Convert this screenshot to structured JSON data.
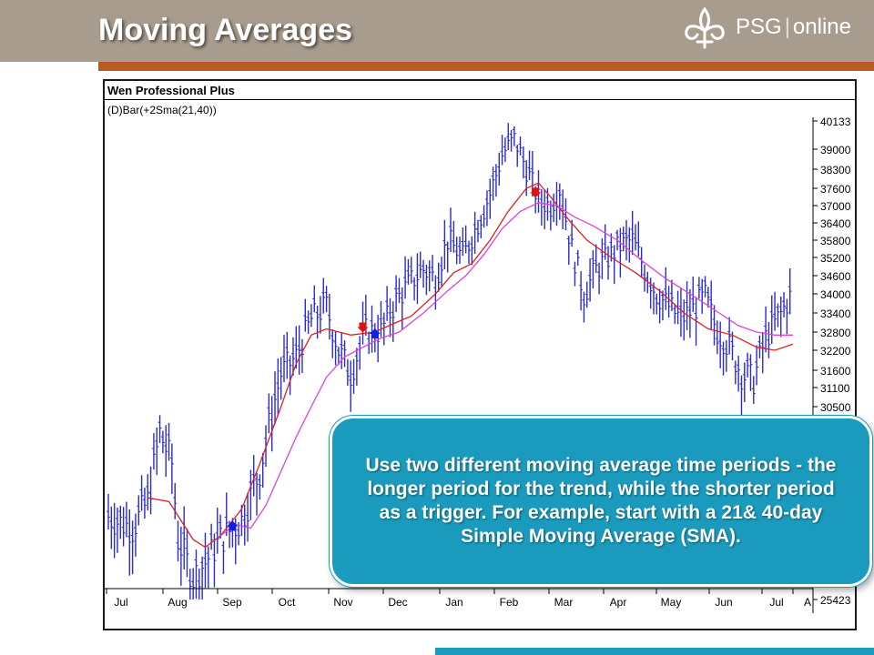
{
  "slide": {
    "title": "Moving Averages",
    "logo_name": "PSG",
    "logo_sub": "online",
    "callout": "Use two different moving average time periods - the longer period for the trend, while the shorter period as a trigger. For example, start with a 21& 40-day Simple Moving Average (SMA)."
  },
  "colors": {
    "header": "#a89c8e",
    "accent": "#b85a24",
    "callout": "#1a9bbd",
    "bars": "#2b2bd0",
    "sma_short": "#e02020",
    "sma_long": "#e040e0",
    "sell_marker": "#e01010",
    "buy_marker": "#1020e0"
  },
  "chart_data": {
    "type": "line",
    "title": "Wen Professional Plus",
    "study": "(D)Bar(+2Sma(21,40))",
    "x_labels": [
      "Jul",
      "Aug",
      "Sep",
      "Oct",
      "Nov",
      "Dec",
      "Jan",
      "Feb",
      "Mar",
      "Apr",
      "May",
      "Jun",
      "Jul",
      "A"
    ],
    "y_ticks": [
      40133,
      39000,
      38300,
      37600,
      37000,
      36400,
      35800,
      35200,
      34600,
      34000,
      33400,
      32800,
      32200,
      31600,
      31100,
      30500,
      25423
    ],
    "ylim": [
      25423,
      40133
    ],
    "price_anchors": [
      [
        0,
        27600
      ],
      [
        8,
        27300
      ],
      [
        13,
        28000
      ],
      [
        17,
        29800
      ],
      [
        21,
        29000
      ],
      [
        23,
        27000
      ],
      [
        28,
        26000
      ],
      [
        32,
        26400
      ],
      [
        37,
        27000
      ],
      [
        44,
        27500
      ],
      [
        50,
        28800
      ],
      [
        57,
        31500
      ],
      [
        62,
        32000
      ],
      [
        67,
        33200
      ],
      [
        72,
        33600
      ],
      [
        76,
        32200
      ],
      [
        80,
        31500
      ],
      [
        85,
        32800
      ],
      [
        90,
        32800
      ],
      [
        95,
        33800
      ],
      [
        100,
        34400
      ],
      [
        104,
        34800
      ],
      [
        108,
        34500
      ],
      [
        112,
        35800
      ],
      [
        117,
        35200
      ],
      [
        122,
        36400
      ],
      [
        126,
        37400
      ],
      [
        130,
        38800
      ],
      [
        134,
        39400
      ],
      [
        138,
        38300
      ],
      [
        142,
        37200
      ],
      [
        146,
        37000
      ],
      [
        149,
        37600
      ],
      [
        153,
        35500
      ],
      [
        157,
        34000
      ],
      [
        161,
        34800
      ],
      [
        165,
        35200
      ],
      [
        169,
        35600
      ],
      [
        173,
        35800
      ],
      [
        177,
        34800
      ],
      [
        181,
        34000
      ],
      [
        185,
        33600
      ],
      [
        189,
        33200
      ],
      [
        193,
        33500
      ],
      [
        197,
        33900
      ],
      [
        201,
        32800
      ],
      [
        205,
        32300
      ],
      [
        209,
        31500
      ],
      [
        213,
        31300
      ],
      [
        217,
        32600
      ],
      [
        221,
        33200
      ],
      [
        225,
        33900
      ]
    ],
    "series": [
      {
        "name": "Sma(21)",
        "values": [
          [
            13,
            28100
          ],
          [
            20,
            28000
          ],
          [
            28,
            27000
          ],
          [
            32,
            26800
          ],
          [
            37,
            27100
          ],
          [
            44,
            27800
          ],
          [
            50,
            29000
          ],
          [
            57,
            30500
          ],
          [
            62,
            31800
          ],
          [
            67,
            32700
          ],
          [
            72,
            32900
          ],
          [
            80,
            32700
          ],
          [
            88,
            32800
          ],
          [
            95,
            33100
          ],
          [
            100,
            33300
          ],
          [
            108,
            34000
          ],
          [
            114,
            34700
          ],
          [
            120,
            35000
          ],
          [
            126,
            35800
          ],
          [
            132,
            36800
          ],
          [
            138,
            37600
          ],
          [
            142,
            37800
          ],
          [
            146,
            37300
          ],
          [
            152,
            36500
          ],
          [
            158,
            35800
          ],
          [
            166,
            35200
          ],
          [
            174,
            34700
          ],
          [
            182,
            34100
          ],
          [
            190,
            33400
          ],
          [
            198,
            32900
          ],
          [
            206,
            32700
          ],
          [
            214,
            32300
          ],
          [
            220,
            32200
          ],
          [
            226,
            32400
          ]
        ]
      },
      {
        "name": "Sma(40)",
        "values": [
          [
            37,
            27100
          ],
          [
            42,
            27400
          ],
          [
            47,
            27300
          ],
          [
            52,
            27900
          ],
          [
            57,
            28800
          ],
          [
            62,
            29700
          ],
          [
            67,
            30500
          ],
          [
            72,
            31400
          ],
          [
            78,
            32000
          ],
          [
            84,
            32300
          ],
          [
            90,
            32600
          ],
          [
            96,
            32800
          ],
          [
            104,
            33400
          ],
          [
            112,
            34100
          ],
          [
            118,
            34600
          ],
          [
            124,
            35300
          ],
          [
            130,
            36200
          ],
          [
            136,
            36800
          ],
          [
            142,
            37100
          ],
          [
            148,
            37000
          ],
          [
            154,
            36600
          ],
          [
            160,
            36300
          ],
          [
            168,
            35800
          ],
          [
            176,
            35100
          ],
          [
            184,
            34500
          ],
          [
            192,
            34000
          ],
          [
            200,
            33500
          ],
          [
            208,
            33000
          ],
          [
            214,
            32800
          ],
          [
            220,
            32700
          ],
          [
            226,
            32700
          ]
        ]
      }
    ],
    "signals": [
      {
        "type": "buy",
        "x": 41,
        "y": 27400
      },
      {
        "type": "sell",
        "x": 84,
        "y": 32900
      },
      {
        "type": "buy",
        "x": 88,
        "y": 32800
      },
      {
        "type": "sell",
        "x": 141,
        "y": 37400
      }
    ]
  }
}
